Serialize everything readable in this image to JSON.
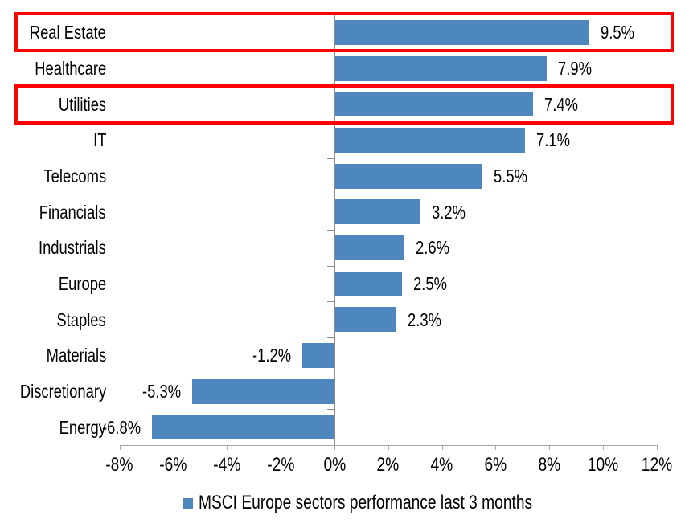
{
  "chart_data": {
    "type": "bar",
    "orientation": "horizontal",
    "title": "",
    "xlabel": "",
    "ylabel": "",
    "categories": [
      "Real Estate",
      "Healthcare",
      "Utilities",
      "IT",
      "Telecoms",
      "Financials",
      "Industrials",
      "Europe",
      "Staples",
      "Materials",
      "Discretionary",
      "Energy"
    ],
    "values": [
      9.5,
      7.9,
      7.4,
      7.1,
      5.5,
      3.2,
      2.6,
      2.5,
      2.3,
      -1.2,
      -5.3,
      -6.8
    ],
    "data_labels": [
      "9.5%",
      "7.9%",
      "7.4%",
      "7.1%",
      "5.5%",
      "3.2%",
      "2.6%",
      "2.5%",
      "2.3%",
      "-1.2%",
      "-5.3%",
      "-6.8%"
    ],
    "x_ticks": [
      "-8%",
      "-6%",
      "-4%",
      "-2%",
      "0%",
      "2%",
      "4%",
      "6%",
      "8%",
      "10%",
      "12%"
    ],
    "xlim": [
      -8,
      12
    ],
    "grid": false,
    "legend": "MSCI Europe sectors performance last 3 months",
    "legend_position": "bottom",
    "bar_color": "#4E86BE",
    "highlight_color": "#FF0000",
    "axis_color": "#A6A6A6",
    "category_axis_color": "#8C8C8C",
    "highlighted_categories": [
      "Real Estate",
      "Utilities"
    ]
  }
}
